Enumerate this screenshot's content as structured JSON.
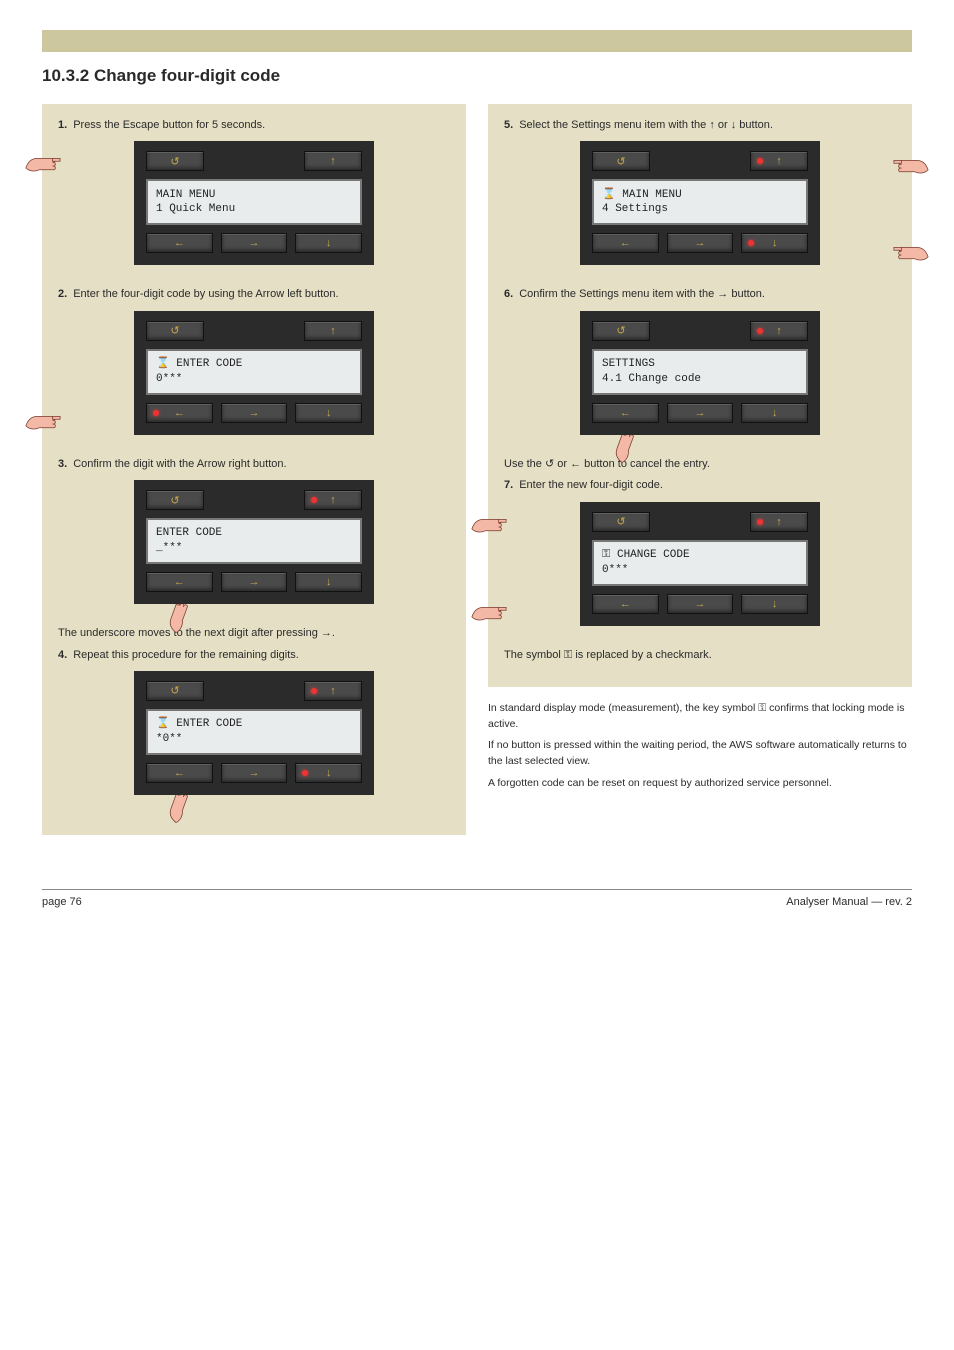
{
  "colors": {
    "page_bg": "#ffffff",
    "header_bar": "#cdc7a0",
    "box_bg": "#e5e0c5",
    "panel_bg": "#2b2b2b",
    "button_bg": "#4a4a4a",
    "button_glyph": "#c9a94a",
    "screen_bg": "#e8eced",
    "led": "#e33333",
    "text": "#2a2a2a"
  },
  "title": "10.3.2 Change four-digit code",
  "glyphs": {
    "escape": "↺",
    "up": "↑",
    "down": "↓",
    "left": "←",
    "right": "→",
    "hourglass": "⌛",
    "key": "⚿"
  },
  "left_steps": [
    {
      "num": "1.",
      "text": "Press the Escape button for 5 seconds.",
      "screen_l1": "MAIN MENU",
      "screen_l2": "1 Quick Menu",
      "highlights": {
        "escape": false,
        "up": false,
        "down": false,
        "left": false,
        "right": false
      },
      "hand": "escape"
    },
    {
      "num": "2.",
      "text": "Enter the four-digit code by using the Arrow left button.",
      "screen_l1": "⌛ ENTER CODE",
      "screen_l2": "0***",
      "highlights": {
        "left": true
      },
      "hand": "left"
    },
    {
      "num": "3.",
      "text": "Confirm the digit with the Arrow right button.",
      "screen_l1": "ENTER CODE",
      "screen_l2": "_***",
      "highlights": {
        "up": true
      },
      "hand": "right-below"
    },
    {
      "num": "4.",
      "text": "Repeat this procedure for the remaining digits.",
      "note_before": "The underscore moves to the next digit after pressing →.",
      "screen_l1": "⌛ ENTER CODE",
      "screen_l2": "*0**",
      "highlights": {
        "up": true,
        "down": true
      },
      "hand": "right-below"
    }
  ],
  "right_steps": [
    {
      "num": "5.",
      "text": "Select the Settings menu item with the ↑ or ↓ button.",
      "screen_l1": "⌛ MAIN MENU",
      "screen_l2": "4 Settings",
      "highlights": {
        "up": true,
        "down": true
      },
      "hand": "up-down-right"
    },
    {
      "num": "6.",
      "text": "Confirm the Settings menu item with the → button.",
      "screen_l1": "SETTINGS",
      "screen_l2": "4.1 Change code",
      "highlights": {
        "up": true
      },
      "hand": "right-below"
    },
    {
      "num": "7.",
      "text": "Enter the new four-digit code.",
      "note_before": "Use the ↺ or ← button to cancel the entry.",
      "screen_l1": "⚿ CHANGE CODE",
      "screen_l2": "0***",
      "highlights": {
        "up": true
      },
      "hand": "escape-and-left"
    },
    {
      "note_only": true,
      "text": "The symbol ⚿ is replaced by a checkmark."
    }
  ],
  "footnotes": [
    "In standard display mode (measurement), the key symbol ⚿ confirms that locking mode is active.",
    "If no button is pressed within the waiting period, the AWS software automatically returns to the last selected view.",
    "A forgotten code can be reset on request by authorized service personnel."
  ],
  "footer_left": "page 76",
  "footer_right": "Analyser Manual — rev. 2"
}
